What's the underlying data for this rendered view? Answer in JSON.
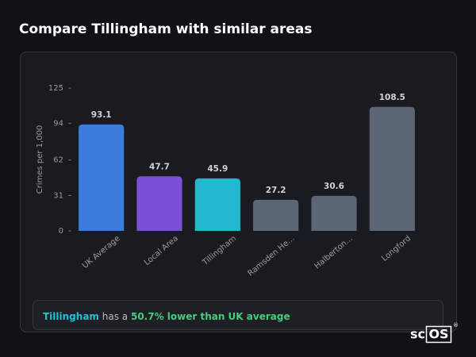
{
  "header": {
    "title": "Compare Tillingham with similar areas"
  },
  "chart_data": {
    "type": "bar",
    "y_label": "Crimes per 1,000",
    "categories": [
      "UK Average",
      "Local Area",
      "Tillingham",
      "Ramsden He...",
      "Halberton...",
      "Longford"
    ],
    "values": [
      93.1,
      47.7,
      45.9,
      27.2,
      30.6,
      108.5
    ],
    "colors": [
      "#3b7ddd",
      "#7b4fd6",
      "#22b8cf",
      "#5c6675",
      "#5c6675",
      "#5c6675"
    ],
    "ylim": [
      0,
      125
    ],
    "yticks": [
      0,
      31,
      62,
      94,
      125
    ],
    "grid": false
  },
  "summary": {
    "area": "Tillingham",
    "middle": "has a",
    "highlight": "50.7% lower than UK average"
  },
  "logo": {
    "left": "sc",
    "boxed": "OS",
    "mark": "®"
  }
}
